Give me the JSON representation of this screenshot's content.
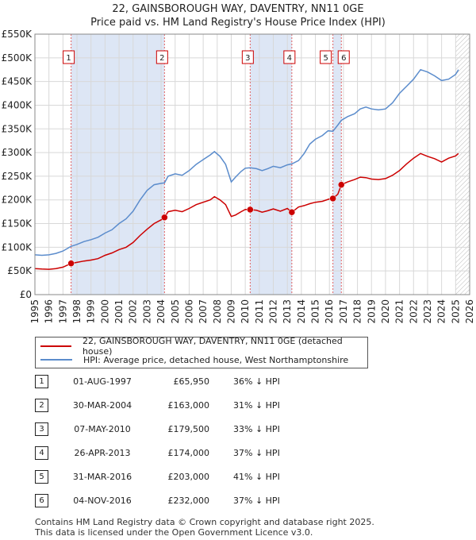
{
  "header": {
    "title": "22, GAINSBOROUGH WAY, DAVENTRY, NN11 0GE",
    "subtitle": "Price paid vs. HM Land Registry's House Price Index (HPI)"
  },
  "legend": {
    "property_label": "22, GAINSBOROUGH WAY, DAVENTRY, NN11 0GE (detached house)",
    "hpi_label": "HPI: Average price, detached house, West Northamptonshire"
  },
  "colors": {
    "property": "#cc0000",
    "hpi": "#5b8ccc",
    "band": "#dde6f5",
    "grid": "#d8d8d8"
  },
  "sales": [
    {
      "n": "1",
      "date": "01-AUG-1997",
      "price": "£65,950",
      "hpi": "36% ↓ HPI"
    },
    {
      "n": "2",
      "date": "30-MAR-2004",
      "price": "£163,000",
      "hpi": "31% ↓ HPI"
    },
    {
      "n": "3",
      "date": "07-MAY-2010",
      "price": "£179,500",
      "hpi": "33% ↓ HPI"
    },
    {
      "n": "4",
      "date": "26-APR-2013",
      "price": "£174,000",
      "hpi": "37% ↓ HPI"
    },
    {
      "n": "5",
      "date": "31-MAR-2016",
      "price": "£203,000",
      "hpi": "41% ↓ HPI"
    },
    {
      "n": "6",
      "date": "04-NOV-2016",
      "price": "£232,000",
      "hpi": "37% ↓ HPI"
    }
  ],
  "footer": {
    "line1": "Contains HM Land Registry data © Crown copyright and database right 2025.",
    "line2": "This data is licensed under the Open Government Licence v3.0."
  },
  "chart_data": {
    "type": "line",
    "xlim": [
      1995,
      2026
    ],
    "ylim": [
      0,
      550000
    ],
    "x_ticks": [
      "1995",
      "1996",
      "1997",
      "1998",
      "1999",
      "2000",
      "2001",
      "2002",
      "2003",
      "2004",
      "2005",
      "2006",
      "2007",
      "2008",
      "2009",
      "2010",
      "2011",
      "2012",
      "2013",
      "2014",
      "2015",
      "2016",
      "2017",
      "2018",
      "2019",
      "2020",
      "2021",
      "2022",
      "2023",
      "2024",
      "2025",
      "2026"
    ],
    "y_ticks": [
      {
        "v": 0,
        "label": "£0"
      },
      {
        "v": 50000,
        "label": "£50K"
      },
      {
        "v": 100000,
        "label": "£100K"
      },
      {
        "v": 150000,
        "label": "£150K"
      },
      {
        "v": 200000,
        "label": "£200K"
      },
      {
        "v": 250000,
        "label": "£250K"
      },
      {
        "v": 300000,
        "label": "£300K"
      },
      {
        "v": 350000,
        "label": "£350K"
      },
      {
        "v": 400000,
        "label": "£400K"
      },
      {
        "v": 450000,
        "label": "£450K"
      },
      {
        "v": 500000,
        "label": "£500K"
      },
      {
        "v": 550000,
        "label": "£550K"
      }
    ],
    "grid": true,
    "shaded_bands": [
      [
        1997.58,
        2004.24
      ],
      [
        2010.35,
        2013.32
      ],
      [
        2016.25,
        2016.85
      ]
    ],
    "future_hatch_from": 2025.0,
    "sales": [
      {
        "label": "1",
        "x": 1997.58,
        "y": 65950
      },
      {
        "label": "2",
        "x": 2004.24,
        "y": 163000
      },
      {
        "label": "3",
        "x": 2010.35,
        "y": 179500
      },
      {
        "label": "4",
        "x": 2013.32,
        "y": 174000
      },
      {
        "label": "5",
        "x": 2016.25,
        "y": 203000
      },
      {
        "label": "6",
        "x": 2016.85,
        "y": 232000
      }
    ],
    "series": [
      {
        "name": "22, GAINSBOROUGH WAY, DAVENTRY, NN11 0GE (detached house)",
        "points": [
          [
            1995.0,
            55000
          ],
          [
            1995.5,
            54000
          ],
          [
            1996.0,
            53500
          ],
          [
            1996.5,
            55000
          ],
          [
            1997.0,
            58000
          ],
          [
            1997.58,
            65950
          ],
          [
            1998.0,
            68000
          ],
          [
            1998.5,
            71000
          ],
          [
            1999.0,
            73000
          ],
          [
            1999.5,
            76000
          ],
          [
            2000.0,
            83000
          ],
          [
            2000.5,
            88000
          ],
          [
            2001.0,
            95000
          ],
          [
            2001.5,
            100000
          ],
          [
            2002.0,
            110000
          ],
          [
            2002.5,
            125000
          ],
          [
            2003.0,
            138000
          ],
          [
            2003.5,
            150000
          ],
          [
            2004.0,
            158000
          ],
          [
            2004.24,
            163000
          ],
          [
            2004.5,
            175000
          ],
          [
            2005.0,
            178000
          ],
          [
            2005.5,
            175000
          ],
          [
            2006.0,
            182000
          ],
          [
            2006.5,
            190000
          ],
          [
            2007.0,
            195000
          ],
          [
            2007.5,
            200000
          ],
          [
            2007.8,
            207000
          ],
          [
            2008.2,
            200000
          ],
          [
            2008.6,
            190000
          ],
          [
            2009.0,
            165000
          ],
          [
            2009.3,
            168000
          ],
          [
            2009.7,
            175000
          ],
          [
            2010.0,
            180000
          ],
          [
            2010.35,
            179500
          ],
          [
            2010.8,
            178000
          ],
          [
            2011.2,
            174000
          ],
          [
            2011.6,
            177000
          ],
          [
            2012.0,
            181000
          ],
          [
            2012.5,
            176000
          ],
          [
            2013.0,
            182000
          ],
          [
            2013.32,
            174000
          ],
          [
            2013.8,
            185000
          ],
          [
            2014.2,
            188000
          ],
          [
            2014.6,
            192000
          ],
          [
            2015.0,
            195000
          ],
          [
            2015.5,
            197000
          ],
          [
            2016.0,
            202000
          ],
          [
            2016.25,
            203000
          ],
          [
            2016.6,
            212000
          ],
          [
            2016.85,
            232000
          ],
          [
            2017.3,
            238000
          ],
          [
            2017.8,
            243000
          ],
          [
            2018.2,
            248000
          ],
          [
            2018.6,
            247000
          ],
          [
            2019.0,
            244000
          ],
          [
            2019.5,
            243000
          ],
          [
            2020.0,
            245000
          ],
          [
            2020.5,
            252000
          ],
          [
            2021.0,
            262000
          ],
          [
            2021.5,
            276000
          ],
          [
            2022.0,
            288000
          ],
          [
            2022.5,
            298000
          ],
          [
            2023.0,
            292000
          ],
          [
            2023.5,
            287000
          ],
          [
            2024.0,
            280000
          ],
          [
            2024.5,
            288000
          ],
          [
            2025.0,
            293000
          ],
          [
            2025.2,
            298000
          ]
        ]
      },
      {
        "name": "HPI: Average price, detached house, West Northamptonshire",
        "points": [
          [
            1995.0,
            84000
          ],
          [
            1995.5,
            83000
          ],
          [
            1996.0,
            84000
          ],
          [
            1996.5,
            87000
          ],
          [
            1997.0,
            92000
          ],
          [
            1997.58,
            102000
          ],
          [
            1998.0,
            106000
          ],
          [
            1998.5,
            112000
          ],
          [
            1999.0,
            116000
          ],
          [
            1999.5,
            121000
          ],
          [
            2000.0,
            130000
          ],
          [
            2000.5,
            137000
          ],
          [
            2001.0,
            150000
          ],
          [
            2001.5,
            160000
          ],
          [
            2002.0,
            176000
          ],
          [
            2002.5,
            200000
          ],
          [
            2003.0,
            220000
          ],
          [
            2003.5,
            232000
          ],
          [
            2004.0,
            235000
          ],
          [
            2004.24,
            236000
          ],
          [
            2004.5,
            250000
          ],
          [
            2005.0,
            255000
          ],
          [
            2005.5,
            252000
          ],
          [
            2006.0,
            262000
          ],
          [
            2006.5,
            275000
          ],
          [
            2007.0,
            285000
          ],
          [
            2007.5,
            295000
          ],
          [
            2007.8,
            302000
          ],
          [
            2008.2,
            292000
          ],
          [
            2008.6,
            275000
          ],
          [
            2009.0,
            238000
          ],
          [
            2009.3,
            248000
          ],
          [
            2009.7,
            260000
          ],
          [
            2010.0,
            267000
          ],
          [
            2010.35,
            268000
          ],
          [
            2010.8,
            266000
          ],
          [
            2011.2,
            262000
          ],
          [
            2011.6,
            266000
          ],
          [
            2012.0,
            271000
          ],
          [
            2012.5,
            268000
          ],
          [
            2013.0,
            274000
          ],
          [
            2013.32,
            276000
          ],
          [
            2013.8,
            283000
          ],
          [
            2014.2,
            298000
          ],
          [
            2014.6,
            318000
          ],
          [
            2015.0,
            328000
          ],
          [
            2015.5,
            336000
          ],
          [
            2015.9,
            346000
          ],
          [
            2016.25,
            345000
          ],
          [
            2016.6,
            358000
          ],
          [
            2016.85,
            368000
          ],
          [
            2017.3,
            376000
          ],
          [
            2017.8,
            382000
          ],
          [
            2018.2,
            392000
          ],
          [
            2018.6,
            396000
          ],
          [
            2019.0,
            392000
          ],
          [
            2019.5,
            390000
          ],
          [
            2020.0,
            392000
          ],
          [
            2020.5,
            405000
          ],
          [
            2021.0,
            425000
          ],
          [
            2021.5,
            440000
          ],
          [
            2022.0,
            455000
          ],
          [
            2022.5,
            475000
          ],
          [
            2023.0,
            470000
          ],
          [
            2023.5,
            462000
          ],
          [
            2024.0,
            452000
          ],
          [
            2024.5,
            455000
          ],
          [
            2025.0,
            465000
          ],
          [
            2025.2,
            475000
          ]
        ]
      }
    ]
  }
}
